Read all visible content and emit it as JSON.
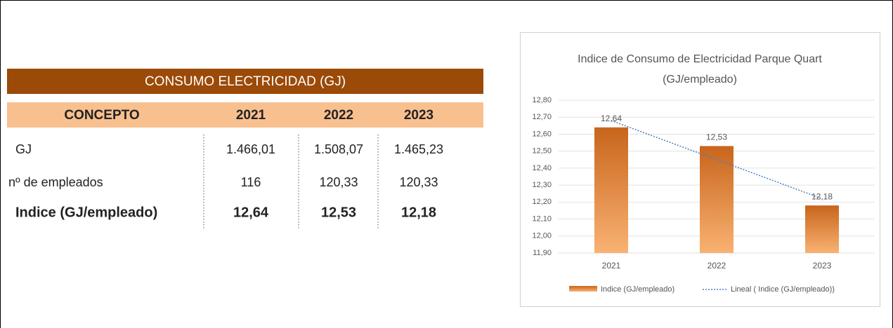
{
  "table": {
    "title": "CONSUMO ELECTRICIDAD (GJ)",
    "header": [
      "CONCEPTO",
      "2021",
      "2022",
      "2023"
    ],
    "rows": [
      [
        "GJ",
        "1.466,01",
        "1.508,07",
        "1.465,23"
      ],
      [
        "nº de empleados",
        "116",
        "120,33",
        "120,33"
      ],
      [
        "Indice (GJ/empleado)",
        "12,64",
        "12,53",
        "12,18"
      ]
    ]
  },
  "chart_data": {
    "type": "bar",
    "title": [
      "Indice de Consumo de Electricidad Parque Quart",
      "(GJ/empleado)"
    ],
    "categories": [
      "2021",
      "2022",
      "2023"
    ],
    "series": [
      {
        "name": "Indice (GJ/empleado)",
        "color": "#e07b2a",
        "values": [
          12.64,
          12.53,
          12.18
        ],
        "value_labels": [
          "12,64",
          "12,53",
          "12,18"
        ]
      }
    ],
    "trendline": {
      "name": "Lineal ( Indice (GJ/empleado))",
      "color": "#4a7fc1"
    },
    "ylim": [
      11.9,
      12.8
    ],
    "yticks": [
      {
        "value": 11.9,
        "label": "11,90"
      },
      {
        "value": 12.0,
        "label": "12,00"
      },
      {
        "value": 12.1,
        "label": "12,10"
      },
      {
        "value": 12.2,
        "label": "12,20"
      },
      {
        "value": 12.3,
        "label": "12,30"
      },
      {
        "value": 12.4,
        "label": "12,40"
      },
      {
        "value": 12.5,
        "label": "12,50"
      },
      {
        "value": 12.6,
        "label": "12,60"
      },
      {
        "value": 12.7,
        "label": "12,70"
      },
      {
        "value": 12.8,
        "label": "12,80"
      }
    ],
    "grid": true
  }
}
